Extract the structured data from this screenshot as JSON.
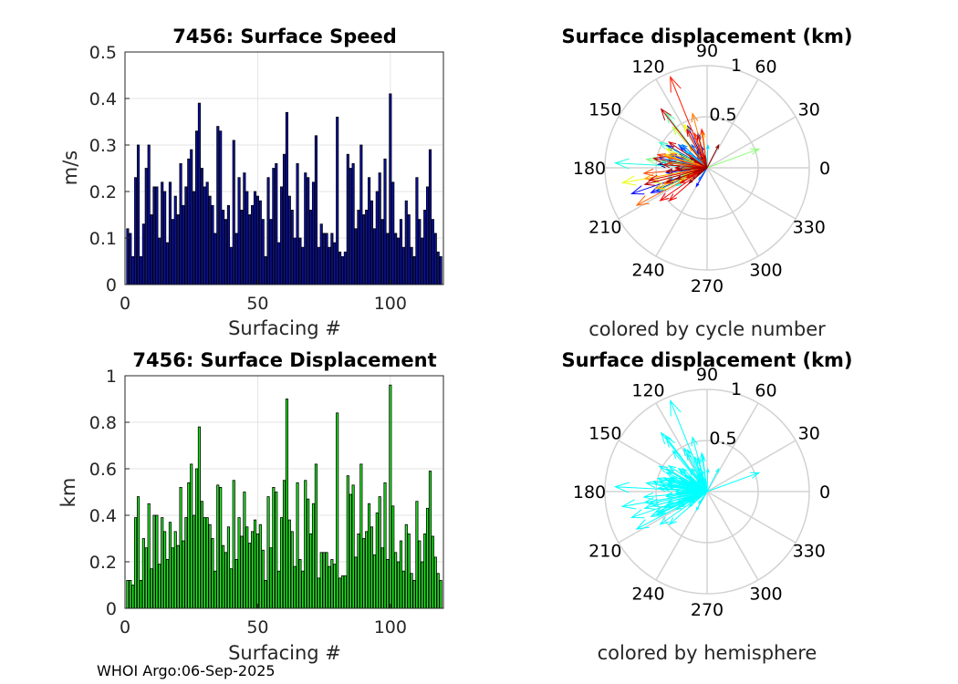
{
  "footer": "WHOI Argo:06-Sep-2025",
  "chart_data": [
    {
      "type": "bar",
      "title": "7456: Surface Speed",
      "xlabel": "Surfacing #",
      "ylabel": "m/s",
      "xlim": [
        0,
        120
      ],
      "ylim": [
        0,
        0.5
      ],
      "xticks": [
        0,
        50,
        100
      ],
      "yticks": [
        0,
        0.1,
        0.2,
        0.3,
        0.4,
        0.5
      ],
      "ytick_labels": [
        "0",
        "0.1",
        "0.2",
        "0.3",
        "0.4",
        "0.5"
      ],
      "bar_color": "#0b12a8",
      "x": [
        1,
        2,
        3,
        4,
        5,
        6,
        7,
        8,
        9,
        10,
        11,
        12,
        13,
        14,
        15,
        16,
        17,
        18,
        19,
        20,
        21,
        22,
        23,
        24,
        25,
        26,
        27,
        28,
        29,
        30,
        31,
        32,
        33,
        34,
        35,
        36,
        37,
        38,
        39,
        40,
        41,
        42,
        43,
        44,
        45,
        46,
        47,
        48,
        49,
        50,
        51,
        52,
        53,
        54,
        55,
        56,
        57,
        58,
        59,
        60,
        61,
        62,
        63,
        64,
        65,
        66,
        67,
        68,
        69,
        70,
        71,
        72,
        73,
        74,
        75,
        76,
        77,
        78,
        79,
        80,
        81,
        82,
        83,
        84,
        85,
        86,
        87,
        88,
        89,
        90,
        91,
        92,
        93,
        94,
        95,
        96,
        97,
        98,
        99,
        100,
        101,
        102,
        103,
        104,
        105,
        106,
        107,
        108,
        109,
        110,
        111,
        112,
        113,
        114,
        115,
        116,
        117,
        118,
        119
      ],
      "values": [
        0.12,
        0.11,
        0.06,
        0.23,
        0.3,
        0.06,
        0.13,
        0.25,
        0.3,
        0.15,
        0.21,
        0.21,
        0.1,
        0.22,
        0.2,
        0.09,
        0.22,
        0.14,
        0.19,
        0.15,
        0.26,
        0.17,
        0.21,
        0.27,
        0.29,
        0.2,
        0.33,
        0.39,
        0.25,
        0.21,
        0.22,
        0.19,
        0.17,
        0.11,
        0.34,
        0.33,
        0.16,
        0.14,
        0.17,
        0.08,
        0.31,
        0.11,
        0.23,
        0.16,
        0.24,
        0.2,
        0.15,
        0.17,
        0.2,
        0.19,
        0.18,
        0.14,
        0.06,
        0.23,
        0.14,
        0.25,
        0.26,
        0.09,
        0.21,
        0.28,
        0.37,
        0.19,
        0.16,
        0.1,
        0.26,
        0.1,
        0.08,
        0.24,
        0.23,
        0.16,
        0.22,
        0.32,
        0.08,
        0.13,
        0.11,
        0.11,
        0.08,
        0.11,
        0.09,
        0.36,
        0.07,
        0.06,
        0.07,
        0.28,
        0.25,
        0.26,
        0.12,
        0.16,
        0.3,
        0.15,
        0.16,
        0.23,
        0.18,
        0.12,
        0.2,
        0.24,
        0.14,
        0.27,
        0.11,
        0.41,
        0.22,
        0.11,
        0.1,
        0.14,
        0.08,
        0.18,
        0.15,
        0.08,
        0.06,
        0.23,
        0.14,
        0.1,
        0.16,
        0.21,
        0.29,
        0.14,
        0.11,
        0.07,
        0.06
      ]
    },
    {
      "type": "polar-compass",
      "title": "Surface displacement (km)",
      "subtitle": "colored by cycle number",
      "rlim": [
        0,
        1
      ],
      "r_ticks": [
        0.5,
        1
      ],
      "r_tick_labels": [
        "0.5",
        "1"
      ],
      "theta_ticks": [
        0,
        30,
        60,
        90,
        120,
        150,
        180,
        210,
        240,
        270,
        300,
        330
      ],
      "theta_tick_labels": [
        "0",
        "30",
        "60",
        "90",
        "120",
        "150",
        "180",
        "210",
        "240",
        "270",
        "300",
        "330"
      ],
      "color_mode": "cycle",
      "colormap": [
        "#000080",
        "#0000ff",
        "#00ffff",
        "#ffff00",
        "#ff0000",
        "#800000"
      ],
      "arrows_angle_deg": [
        -165,
        -150,
        176,
        126,
        154,
        168,
        -172,
        165,
        100,
        115,
        157,
        120,
        -178,
        170,
        151,
        -173,
        148,
        104,
        165,
        142,
        -160,
        132,
        -145,
        -156,
        -161,
        -120,
        160,
        161,
        105,
        112,
        -155,
        168,
        124,
        115,
        141,
        137,
        160,
        -125,
        171,
        -175,
        140,
        165,
        110,
        160,
        88,
        144,
        120,
        172,
        -165,
        -150,
        177,
        166,
        152,
        -175,
        152,
        127,
        110,
        -162,
        169,
        172,
        20,
        -178,
        175,
        -155,
        -175,
        130,
        -146,
        -165,
        155,
        -170,
        162,
        118,
        -162,
        -148,
        -155,
        163,
        97,
        -158,
        164,
        -170,
        130,
        158,
        120,
        105,
        -160,
        -152,
        145,
        173,
        -175,
        110,
        165,
        98,
        112,
        -160,
        154,
        -176,
        -145,
        -139,
        118,
        -155,
        -168,
        -150,
        -152,
        146,
        106,
        176,
        128,
        -165,
        102,
        170,
        -160,
        -180,
        -175,
        -145,
        118,
        -160,
        63,
        -140,
        150
      ],
      "arrows_length_km": [
        0.12,
        0.1,
        0.48,
        0.06,
        0.3,
        0.39,
        0.12,
        0.12,
        0.1,
        0.45,
        0.26,
        0.19,
        0.27,
        0.12,
        0.45,
        0.4,
        0.17,
        0.21,
        0.26,
        0.33,
        0.1,
        0.14,
        0.18,
        0.6,
        0.78,
        0.21,
        0.38,
        0.39,
        0.35,
        0.2,
        0.54,
        0.48,
        0.27,
        0.12,
        0.36,
        0.33,
        0.13,
        0.14,
        0.39,
        0.3,
        0.23,
        0.39,
        0.25,
        0.24,
        0.22,
        0.27,
        0.1,
        0.45,
        0.4,
        0.35,
        0.9,
        0.15,
        0.53,
        0.31,
        0.14,
        0.67,
        0.2,
        0.26,
        0.31,
        0.6,
        0.54,
        0.24,
        0.21,
        0.51,
        0.16,
        0.52,
        0.2,
        0.55,
        0.44,
        0.84,
        0.09,
        0.48,
        0.23,
        0.12,
        0.3,
        0.44,
        0.35,
        0.54,
        0.42,
        0.62,
        0.26,
        0.38,
        0.15,
        0.55,
        0.45,
        0.78,
        0.22,
        0.38,
        0.62,
        0.36,
        0.5,
        0.38,
        0.96,
        0.14,
        0.14,
        0.31,
        0.56,
        0.49,
        0.42,
        0.22,
        0.58,
        0.3,
        0.18,
        0.45,
        0.33,
        0.43,
        0.73,
        0.63,
        0.12,
        0.53,
        0.42,
        0.31,
        0.4,
        0.11,
        0.12,
        0.32,
        0.25,
        0.23,
        0.19
      ]
    },
    {
      "type": "bar",
      "title": "7456: Surface Displacement",
      "xlabel": "Surfacing #",
      "ylabel": "km",
      "xlim": [
        0,
        120
      ],
      "ylim": [
        0,
        1
      ],
      "xticks": [
        0,
        50,
        100
      ],
      "yticks": [
        0,
        0.2,
        0.4,
        0.6,
        0.8,
        1
      ],
      "ytick_labels": [
        "0",
        "0.2",
        "0.4",
        "0.6",
        "0.8",
        "1"
      ],
      "bar_color": "#22ee22",
      "x": [
        1,
        2,
        3,
        4,
        5,
        6,
        7,
        8,
        9,
        10,
        11,
        12,
        13,
        14,
        15,
        16,
        17,
        18,
        19,
        20,
        21,
        22,
        23,
        24,
        25,
        26,
        27,
        28,
        29,
        30,
        31,
        32,
        33,
        34,
        35,
        36,
        37,
        38,
        39,
        40,
        41,
        42,
        43,
        44,
        45,
        46,
        47,
        48,
        49,
        50,
        51,
        52,
        53,
        54,
        55,
        56,
        57,
        58,
        59,
        60,
        61,
        62,
        63,
        64,
        65,
        66,
        67,
        68,
        69,
        70,
        71,
        72,
        73,
        74,
        75,
        76,
        77,
        78,
        79,
        80,
        81,
        82,
        83,
        84,
        85,
        86,
        87,
        88,
        89,
        90,
        91,
        92,
        93,
        94,
        95,
        96,
        97,
        98,
        99,
        100,
        101,
        102,
        103,
        104,
        105,
        106,
        107,
        108,
        109,
        110,
        111,
        112,
        113,
        114,
        115,
        116,
        117,
        118,
        119
      ],
      "values": [
        0.12,
        0.12,
        0.1,
        0.39,
        0.48,
        0.12,
        0.3,
        0.26,
        0.45,
        0.17,
        0.4,
        0.4,
        0.19,
        0.39,
        0.33,
        0.21,
        0.37,
        0.26,
        0.33,
        0.27,
        0.52,
        0.29,
        0.39,
        0.54,
        0.62,
        0.4,
        0.6,
        0.78,
        0.46,
        0.39,
        0.39,
        0.36,
        0.3,
        0.16,
        0.53,
        0.52,
        0.27,
        0.24,
        0.35,
        0.17,
        0.55,
        0.21,
        0.39,
        0.31,
        0.5,
        0.35,
        0.28,
        0.33,
        0.38,
        0.32,
        0.36,
        0.25,
        0.12,
        0.48,
        0.26,
        0.52,
        0.5,
        0.16,
        0.39,
        0.55,
        0.9,
        0.38,
        0.33,
        0.18,
        0.54,
        0.21,
        0.16,
        0.55,
        0.47,
        0.32,
        0.45,
        0.62,
        0.13,
        0.24,
        0.24,
        0.24,
        0.18,
        0.21,
        0.19,
        0.84,
        0.13,
        0.14,
        0.14,
        0.57,
        0.49,
        0.53,
        0.22,
        0.32,
        0.62,
        0.3,
        0.33,
        0.45,
        0.35,
        0.23,
        0.41,
        0.48,
        0.26,
        0.54,
        0.21,
        0.96,
        0.44,
        0.24,
        0.2,
        0.29,
        0.16,
        0.36,
        0.32,
        0.15,
        0.12,
        0.46,
        0.29,
        0.2,
        0.32,
        0.43,
        0.59,
        0.31,
        0.22,
        0.15,
        0.12
      ]
    },
    {
      "type": "polar-compass",
      "title": "Surface displacement (km)",
      "subtitle": "colored by hemisphere",
      "rlim": [
        0,
        1
      ],
      "r_ticks": [
        0.5,
        1
      ],
      "r_tick_labels": [
        "0.5",
        "1"
      ],
      "theta_ticks": [
        0,
        30,
        60,
        90,
        120,
        150,
        180,
        210,
        240,
        270,
        300,
        330
      ],
      "theta_tick_labels": [
        "0",
        "30",
        "60",
        "90",
        "120",
        "150",
        "180",
        "210",
        "240",
        "270",
        "300",
        "330"
      ],
      "color_mode": "single",
      "arrow_color": "#00ffff",
      "arrows_angle_deg": [
        -165,
        -150,
        176,
        126,
        154,
        168,
        -172,
        165,
        100,
        115,
        157,
        120,
        -178,
        170,
        151,
        -173,
        148,
        104,
        165,
        142,
        -160,
        132,
        -145,
        -156,
        -161,
        -120,
        160,
        161,
        105,
        112,
        -155,
        168,
        124,
        115,
        141,
        137,
        160,
        -125,
        171,
        -175,
        140,
        165,
        110,
        160,
        88,
        144,
        120,
        172,
        -165,
        -150,
        177,
        166,
        152,
        -175,
        152,
        127,
        110,
        -162,
        169,
        172,
        20,
        -178,
        175,
        -155,
        -175,
        130,
        -146,
        -165,
        155,
        -170,
        162,
        118,
        -162,
        -148,
        -155,
        163,
        97,
        -158,
        164,
        -170,
        130,
        158,
        120,
        105,
        -160,
        -152,
        145,
        173,
        -175,
        110,
        165,
        98,
        112,
        -160,
        154,
        -176,
        -145,
        -139,
        118,
        -155,
        -168,
        -150,
        -152,
        146,
        106,
        176,
        128,
        -165,
        102,
        170,
        -160,
        -180,
        -175,
        -145,
        118,
        -160,
        63,
        -140,
        150
      ],
      "arrows_length_km": [
        0.12,
        0.1,
        0.48,
        0.06,
        0.3,
        0.39,
        0.12,
        0.12,
        0.1,
        0.45,
        0.26,
        0.19,
        0.27,
        0.12,
        0.45,
        0.4,
        0.17,
        0.21,
        0.26,
        0.33,
        0.1,
        0.14,
        0.18,
        0.6,
        0.78,
        0.21,
        0.38,
        0.39,
        0.35,
        0.2,
        0.54,
        0.48,
        0.27,
        0.12,
        0.36,
        0.33,
        0.13,
        0.14,
        0.39,
        0.3,
        0.23,
        0.39,
        0.25,
        0.24,
        0.22,
        0.27,
        0.1,
        0.45,
        0.4,
        0.35,
        0.9,
        0.15,
        0.53,
        0.31,
        0.14,
        0.67,
        0.2,
        0.26,
        0.31,
        0.6,
        0.54,
        0.24,
        0.21,
        0.51,
        0.16,
        0.52,
        0.2,
        0.55,
        0.44,
        0.84,
        0.09,
        0.48,
        0.23,
        0.12,
        0.3,
        0.44,
        0.35,
        0.54,
        0.42,
        0.62,
        0.26,
        0.38,
        0.15,
        0.55,
        0.45,
        0.78,
        0.22,
        0.38,
        0.62,
        0.36,
        0.5,
        0.38,
        0.96,
        0.14,
        0.14,
        0.31,
        0.56,
        0.49,
        0.42,
        0.22,
        0.58,
        0.3,
        0.18,
        0.45,
        0.33,
        0.43,
        0.73,
        0.63,
        0.12,
        0.53,
        0.42,
        0.31,
        0.4,
        0.11,
        0.12,
        0.32,
        0.25,
        0.23,
        0.19
      ]
    }
  ]
}
